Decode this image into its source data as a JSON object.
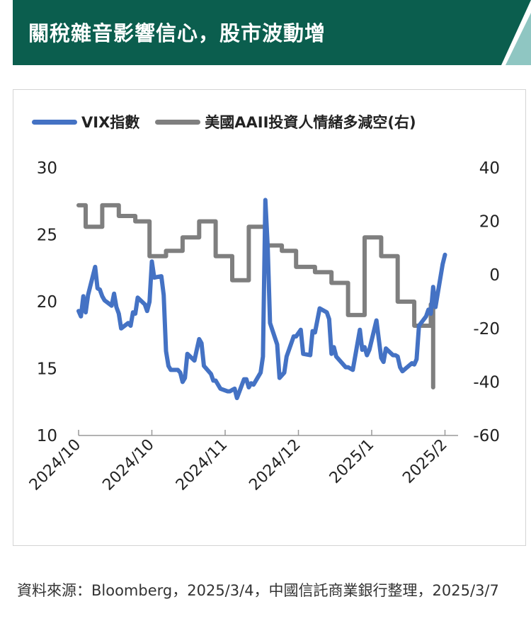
{
  "header": {
    "title": "關稅雜音影響信心，股市波動增",
    "bg_color": "#0b5e4e",
    "stripe_color": "#8fc6c2"
  },
  "legend": [
    {
      "label": "VIX指數",
      "color": "#4472c4"
    },
    {
      "label": "美國AAII投資人情緒多減空(右)",
      "color": "#7f7f7f"
    }
  ],
  "source_note": "資料來源：Bloomberg，2025/3/4，中國信託商業銀行整理，2025/3/7",
  "chart_data": {
    "type": "line",
    "x_tick_labels": [
      "2024/10",
      "2024/10",
      "2024/11",
      "2024/12",
      "2025/1",
      "2025/2"
    ],
    "x_range": [
      "2024-09-30",
      "2025-03-03"
    ],
    "left_axis": {
      "ticks": [
        30,
        25,
        20,
        15,
        10
      ],
      "ylim": [
        10,
        30
      ]
    },
    "right_axis": {
      "ticks": [
        40,
        20,
        0,
        -20,
        -40,
        -60
      ],
      "ylim": [
        -60,
        40
      ]
    },
    "grid": false,
    "legend_position": "top",
    "series": [
      {
        "name": "VIX指數",
        "axis": "left",
        "color": "#4472c4",
        "data": [
          [
            "2024-09-30",
            19.3
          ],
          [
            "2024-10-01",
            18.9
          ],
          [
            "2024-10-02",
            20.4
          ],
          [
            "2024-10-03",
            19.2
          ],
          [
            "2024-10-04",
            20.5
          ],
          [
            "2024-10-07",
            22.6
          ],
          [
            "2024-10-08",
            21.0
          ],
          [
            "2024-10-09",
            20.9
          ],
          [
            "2024-10-10",
            20.4
          ],
          [
            "2024-10-11",
            20.1
          ],
          [
            "2024-10-14",
            19.7
          ],
          [
            "2024-10-15",
            20.6
          ],
          [
            "2024-10-16",
            19.6
          ],
          [
            "2024-10-17",
            19.1
          ],
          [
            "2024-10-18",
            18.0
          ],
          [
            "2024-10-21",
            18.4
          ],
          [
            "2024-10-22",
            18.2
          ],
          [
            "2024-10-23",
            19.2
          ],
          [
            "2024-10-24",
            19.1
          ],
          [
            "2024-10-25",
            20.3
          ],
          [
            "2024-10-28",
            19.8
          ],
          [
            "2024-10-29",
            19.3
          ],
          [
            "2024-10-30",
            20.0
          ],
          [
            "2024-10-31",
            23.0
          ],
          [
            "2024-11-01",
            21.8
          ],
          [
            "2024-11-04",
            21.9
          ],
          [
            "2024-11-05",
            20.5
          ],
          [
            "2024-11-06",
            16.3
          ],
          [
            "2024-11-07",
            15.2
          ],
          [
            "2024-11-08",
            14.9
          ],
          [
            "2024-11-11",
            14.9
          ],
          [
            "2024-11-12",
            14.7
          ],
          [
            "2024-11-13",
            14.0
          ],
          [
            "2024-11-14",
            14.3
          ],
          [
            "2024-11-15",
            16.1
          ],
          [
            "2024-11-18",
            15.6
          ],
          [
            "2024-11-19",
            16.4
          ],
          [
            "2024-11-20",
            17.2
          ],
          [
            "2024-11-21",
            16.9
          ],
          [
            "2024-11-22",
            15.2
          ],
          [
            "2024-11-25",
            14.6
          ],
          [
            "2024-11-26",
            14.1
          ],
          [
            "2024-11-27",
            14.1
          ],
          [
            "2024-11-29",
            13.5
          ],
          [
            "2024-12-02",
            13.3
          ],
          [
            "2024-12-03",
            13.3
          ],
          [
            "2024-12-04",
            13.4
          ],
          [
            "2024-12-05",
            13.5
          ],
          [
            "2024-12-06",
            12.8
          ],
          [
            "2024-12-09",
            14.2
          ],
          [
            "2024-12-10",
            14.2
          ],
          [
            "2024-12-11",
            13.6
          ],
          [
            "2024-12-12",
            13.9
          ],
          [
            "2024-12-13",
            13.8
          ],
          [
            "2024-12-16",
            14.7
          ],
          [
            "2024-12-17",
            15.9
          ],
          [
            "2024-12-18",
            27.6
          ],
          [
            "2024-12-19",
            24.1
          ],
          [
            "2024-12-20",
            18.4
          ],
          [
            "2024-12-23",
            16.8
          ],
          [
            "2024-12-24",
            14.3
          ],
          [
            "2024-12-26",
            14.7
          ],
          [
            "2024-12-27",
            15.9
          ],
          [
            "2024-12-30",
            17.4
          ],
          [
            "2024-12-31",
            17.4
          ],
          [
            "2025-01-02",
            17.9
          ],
          [
            "2025-01-03",
            16.1
          ],
          [
            "2025-01-06",
            16.0
          ],
          [
            "2025-01-07",
            17.8
          ],
          [
            "2025-01-08",
            17.7
          ],
          [
            "2025-01-10",
            19.5
          ],
          [
            "2025-01-13",
            19.2
          ],
          [
            "2025-01-14",
            18.7
          ],
          [
            "2025-01-15",
            16.1
          ],
          [
            "2025-01-16",
            16.6
          ],
          [
            "2025-01-17",
            15.9
          ],
          [
            "2025-01-21",
            15.1
          ],
          [
            "2025-01-22",
            15.1
          ],
          [
            "2025-01-23",
            15.0
          ],
          [
            "2025-01-24",
            14.9
          ],
          [
            "2025-01-27",
            17.9
          ],
          [
            "2025-01-28",
            16.4
          ],
          [
            "2025-01-29",
            16.6
          ],
          [
            "2025-01-30",
            16.0
          ],
          [
            "2025-01-31",
            16.4
          ],
          [
            "2025-02-03",
            18.6
          ],
          [
            "2025-02-04",
            17.2
          ],
          [
            "2025-02-05",
            15.8
          ],
          [
            "2025-02-06",
            15.5
          ],
          [
            "2025-02-07",
            16.5
          ],
          [
            "2025-02-10",
            16.0
          ],
          [
            "2025-02-11",
            16.0
          ],
          [
            "2025-02-12",
            15.9
          ],
          [
            "2025-02-13",
            15.1
          ],
          [
            "2025-02-14",
            14.8
          ],
          [
            "2025-02-18",
            15.4
          ],
          [
            "2025-02-19",
            15.3
          ],
          [
            "2025-02-20",
            15.7
          ],
          [
            "2025-02-21",
            18.2
          ],
          [
            "2025-02-24",
            18.9
          ],
          [
            "2025-02-25",
            19.4
          ],
          [
            "2025-02-26",
            19.1
          ],
          [
            "2025-02-27",
            21.1
          ],
          [
            "2025-02-28",
            19.6
          ],
          [
            "2025-03-03",
            22.8
          ],
          [
            "2025-03-04",
            23.5
          ]
        ]
      },
      {
        "name": "美國AAII投資人情緒多減空(右)",
        "axis": "right",
        "color": "#7f7f7f",
        "data": [
          [
            "2024-09-30",
            26
          ],
          [
            "2024-10-03",
            18
          ],
          [
            "2024-10-10",
            26
          ],
          [
            "2024-10-17",
            22
          ],
          [
            "2024-10-24",
            20
          ],
          [
            "2024-10-29",
            20
          ],
          [
            "2024-10-30",
            7
          ],
          [
            "2024-11-06",
            9
          ],
          [
            "2024-11-12",
            9
          ],
          [
            "2024-11-13",
            14
          ],
          [
            "2024-11-20",
            20
          ],
          [
            "2024-11-27",
            7
          ],
          [
            "2024-12-04",
            -2
          ],
          [
            "2024-12-11",
            18
          ],
          [
            "2024-12-18",
            11
          ],
          [
            "2024-12-25",
            9
          ],
          [
            "2024-12-31",
            3
          ],
          [
            "2025-01-08",
            1
          ],
          [
            "2025-01-15",
            -3
          ],
          [
            "2025-01-22",
            -15
          ],
          [
            "2025-01-29",
            14
          ],
          [
            "2025-02-05",
            7
          ],
          [
            "2025-02-12",
            -10
          ],
          [
            "2025-02-19",
            -19
          ],
          [
            "2025-02-26",
            -11
          ],
          [
            "2025-02-27",
            -42
          ]
        ]
      }
    ]
  }
}
